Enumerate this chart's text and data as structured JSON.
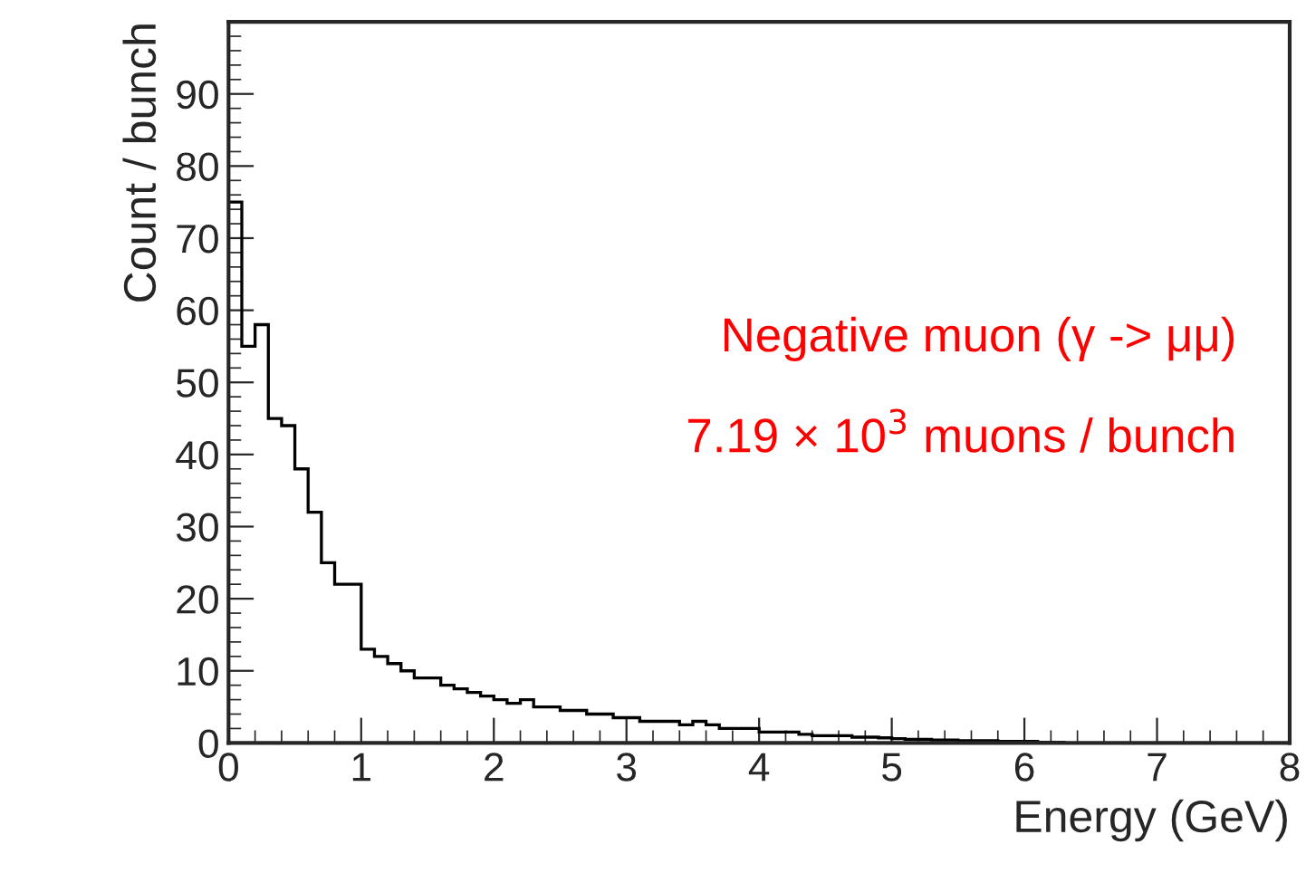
{
  "chart_data": {
    "type": "histogram",
    "xlabel": "Energy (GeV)",
    "ylabel": "Count / bunch",
    "annotations": [
      "Negative muon (γ -> μμ)",
      "7.19 × 10$^{3}$ muons / bunch"
    ],
    "bins": [
      0,
      0.1,
      0.2,
      0.3,
      0.4,
      0.5,
      0.6,
      0.7,
      0.8,
      0.9,
      1.0,
      1.1,
      1.2,
      1.3,
      1.4,
      1.5,
      1.6,
      1.7,
      1.8,
      1.9,
      2.0,
      2.1,
      2.2,
      2.3,
      2.4,
      2.5,
      2.6,
      2.7,
      2.8,
      2.9,
      3.0,
      3.1,
      3.2,
      3.3,
      3.4,
      3.5,
      3.6,
      3.7,
      3.8,
      3.9,
      4.0,
      4.1,
      4.2,
      4.3,
      4.4,
      4.5,
      4.6,
      4.7,
      4.8,
      4.9,
      5.0,
      5.1,
      5.2,
      5.3,
      5.4,
      5.5,
      5.6,
      5.7,
      5.8,
      5.9,
      6.0,
      6.1,
      6.2,
      6.3
    ],
    "values": [
      75,
      55,
      58,
      45,
      44,
      38,
      32,
      25,
      22,
      22,
      13,
      12,
      11,
      10,
      9,
      9,
      8,
      7.5,
      7,
      6.5,
      6,
      5.5,
      6,
      5,
      5,
      4.5,
      4.5,
      4,
      4,
      3.5,
      3.5,
      3,
      3,
      3,
      2.5,
      3,
      2.5,
      2,
      2,
      2,
      1.5,
      1.5,
      1.5,
      1.2,
      1,
      1,
      1,
      0.8,
      0.8,
      0.7,
      0.6,
      0.5,
      0.5,
      0.4,
      0.4,
      0.3,
      0.3,
      0.3,
      0.2,
      0.2,
      0.2,
      0.1,
      0.1
    ],
    "color": "#000000",
    "xlim": [
      0,
      8
    ],
    "xticks": [
      0,
      1,
      2,
      3,
      4,
      5,
      6,
      7,
      8
    ],
    "ylim": [
      0,
      100
    ],
    "yticks": [
      0,
      10,
      20,
      30,
      40,
      50,
      60,
      70,
      80,
      90
    ],
    "grid": false,
    "legend": false
  }
}
